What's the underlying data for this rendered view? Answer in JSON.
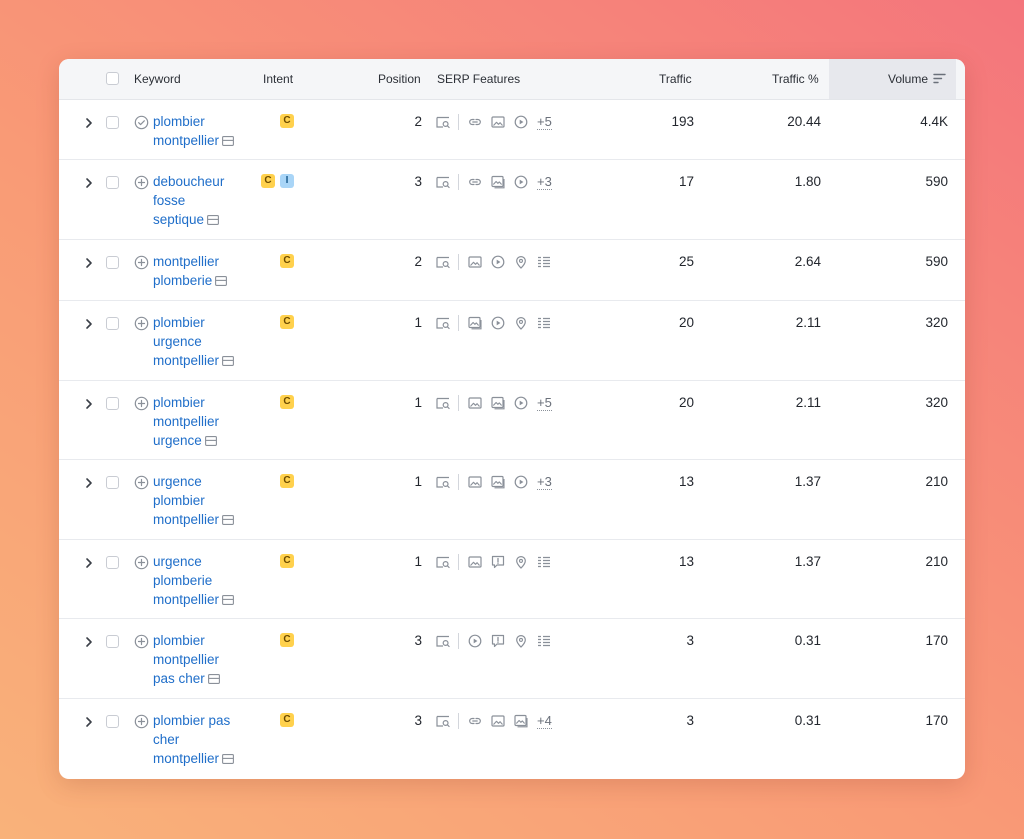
{
  "colors": {
    "link": "#1f6ec9",
    "commercial_badge": "#ffd14d",
    "informational_badge": "#a9d5f7",
    "icon": "#8a9099"
  },
  "table": {
    "headers": {
      "keyword": "Keyword",
      "intent": "Intent",
      "position": "Position",
      "serp_features": "SERP Features",
      "traffic": "Traffic",
      "traffic_pct": "Traffic %",
      "volume": "Volume"
    },
    "sort_icon": "sort-descending-icon",
    "rows": [
      {
        "keyword_lines": [
          "plombier",
          "montpellier"
        ],
        "status_icon": "check-circle-icon",
        "intents": [
          "C"
        ],
        "position": "2",
        "features": [
          "serp-snippet-icon",
          "sep",
          "link-icon",
          "image-icon",
          "video-icon"
        ],
        "more": "+5",
        "traffic": "193",
        "traffic_pct": "20.44",
        "volume": "4.4K"
      },
      {
        "keyword_lines": [
          "deboucheur",
          "fosse",
          "septique"
        ],
        "status_icon": "add-circle-icon",
        "intents": [
          "C",
          "I"
        ],
        "position": "3",
        "features": [
          "serp-snippet-icon",
          "sep",
          "link-icon",
          "image-pack-icon",
          "video-icon"
        ],
        "more": "+3",
        "traffic": "17",
        "traffic_pct": "1.80",
        "volume": "590"
      },
      {
        "keyword_lines": [
          "montpellier",
          "plomberie"
        ],
        "status_icon": "add-circle-icon",
        "intents": [
          "C"
        ],
        "position": "2",
        "features": [
          "serp-snippet-icon",
          "sep",
          "image-icon",
          "video-icon",
          "location-pin-icon",
          "list-icon"
        ],
        "more": "",
        "traffic": "25",
        "traffic_pct": "2.64",
        "volume": "590"
      },
      {
        "keyword_lines": [
          "plombier",
          "urgence",
          "montpellier"
        ],
        "status_icon": "add-circle-icon",
        "intents": [
          "C"
        ],
        "position": "1",
        "features": [
          "serp-snippet-icon",
          "sep",
          "image-pack-icon",
          "video-icon",
          "location-pin-icon",
          "list-icon"
        ],
        "more": "",
        "traffic": "20",
        "traffic_pct": "2.11",
        "volume": "320"
      },
      {
        "keyword_lines": [
          "plombier",
          "montpellier",
          "urgence"
        ],
        "status_icon": "add-circle-icon",
        "intents": [
          "C"
        ],
        "position": "1",
        "features": [
          "serp-snippet-icon",
          "sep",
          "image-icon",
          "image-pack-icon",
          "video-icon"
        ],
        "more": "+5",
        "traffic": "20",
        "traffic_pct": "2.11",
        "volume": "320"
      },
      {
        "keyword_lines": [
          "urgence",
          "plombier",
          "montpellier"
        ],
        "status_icon": "add-circle-icon",
        "intents": [
          "C"
        ],
        "position": "1",
        "features": [
          "serp-snippet-icon",
          "sep",
          "image-icon",
          "image-pack-icon",
          "video-icon"
        ],
        "more": "+3",
        "traffic": "13",
        "traffic_pct": "1.37",
        "volume": "210"
      },
      {
        "keyword_lines": [
          "urgence",
          "plomberie",
          "montpellier"
        ],
        "status_icon": "add-circle-icon",
        "intents": [
          "C"
        ],
        "position": "1",
        "features": [
          "serp-snippet-icon",
          "sep",
          "image-icon",
          "review-icon",
          "location-pin-icon",
          "list-icon"
        ],
        "more": "",
        "traffic": "13",
        "traffic_pct": "1.37",
        "volume": "210"
      },
      {
        "keyword_lines": [
          "plombier",
          "montpellier",
          "pas cher"
        ],
        "status_icon": "add-circle-icon",
        "intents": [
          "C"
        ],
        "position": "3",
        "features": [
          "serp-snippet-icon",
          "sep",
          "video-icon",
          "review-icon",
          "location-pin-icon",
          "list-icon"
        ],
        "more": "",
        "traffic": "3",
        "traffic_pct": "0.31",
        "volume": "170"
      },
      {
        "keyword_lines": [
          "plombier pas",
          "cher",
          "montpellier"
        ],
        "status_icon": "add-circle-icon",
        "intents": [
          "C"
        ],
        "position": "3",
        "features": [
          "serp-snippet-icon",
          "sep",
          "link-icon",
          "image-icon",
          "image-pack-icon"
        ],
        "more": "+4",
        "traffic": "3",
        "traffic_pct": "0.31",
        "volume": "170"
      }
    ]
  }
}
